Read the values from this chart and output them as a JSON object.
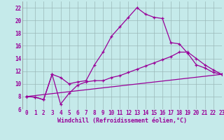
{
  "series": [
    {
      "x": [
        0,
        1,
        2,
        3,
        4,
        5,
        6,
        7,
        8,
        9,
        10,
        11,
        12,
        13,
        14,
        15,
        16,
        17,
        18,
        19,
        20,
        21,
        22,
        23
      ],
      "y": [
        8.0,
        7.9,
        7.5,
        11.5,
        11.0,
        10.0,
        10.3,
        10.5,
        13.0,
        15.0,
        17.5,
        19.0,
        20.5,
        22.0,
        21.0,
        20.5,
        20.3,
        16.5,
        16.3,
        14.8,
        13.0,
        12.5,
        11.8,
        11.5
      ]
    },
    {
      "x": [
        0,
        1,
        2,
        3,
        4,
        5,
        6,
        7,
        8,
        9,
        10,
        11,
        12,
        13,
        14,
        15,
        16,
        17,
        18,
        19,
        20,
        21,
        22,
        23
      ],
      "y": [
        8.0,
        7.9,
        7.5,
        11.5,
        6.8,
        8.5,
        9.8,
        10.3,
        10.5,
        10.5,
        11.0,
        11.3,
        11.8,
        12.3,
        12.8,
        13.3,
        13.8,
        14.3,
        15.0,
        15.0,
        14.0,
        13.0,
        12.2,
        11.5
      ]
    },
    {
      "x": [
        0,
        23
      ],
      "y": [
        8.0,
        11.5
      ]
    }
  ],
  "color": "#990099",
  "bg_color": "#c5eaea",
  "grid_color": "#9ab8b8",
  "xlabel": "Windchill (Refroidissement éolien,°C)",
  "xlim": [
    -0.5,
    23
  ],
  "ylim": [
    6,
    23
  ],
  "xticks": [
    0,
    1,
    2,
    3,
    4,
    5,
    6,
    7,
    8,
    9,
    10,
    11,
    12,
    13,
    14,
    15,
    16,
    17,
    18,
    19,
    20,
    21,
    22,
    23
  ],
  "yticks": [
    6,
    8,
    10,
    12,
    14,
    16,
    18,
    20,
    22
  ],
  "tick_fontsize": 5.5,
  "xlabel_fontsize": 6.0,
  "linewidth": 0.9,
  "markersize": 2.5,
  "marker": "+"
}
